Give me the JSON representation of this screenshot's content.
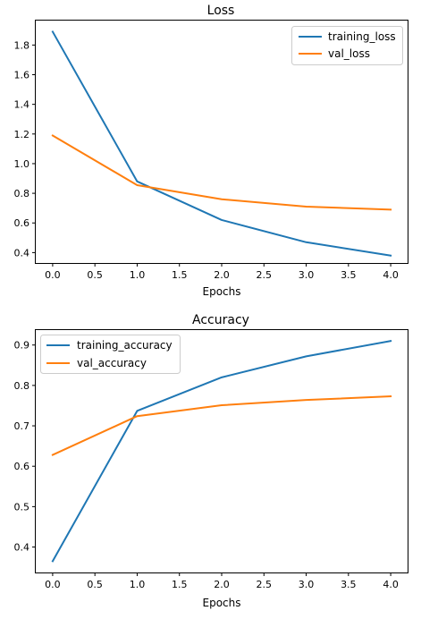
{
  "chart_data": [
    {
      "type": "line",
      "title": "Loss",
      "xlabel": "Epochs",
      "ylabel": "",
      "x": [
        0,
        1,
        2,
        3,
        4
      ],
      "xlim": [
        -0.2,
        4.2
      ],
      "ylim": [
        0.33,
        1.965
      ],
      "xticks": [
        0.0,
        0.5,
        1.0,
        1.5,
        2.0,
        2.5,
        3.0,
        3.5,
        4.0
      ],
      "xtick_labels": [
        "0.0",
        "0.5",
        "1.0",
        "1.5",
        "2.0",
        "2.5",
        "3.0",
        "3.5",
        "4.0"
      ],
      "yticks": [
        0.4,
        0.6,
        0.8,
        1.0,
        1.2,
        1.4,
        1.6,
        1.8
      ],
      "ytick_labels": [
        "0.4",
        "0.6",
        "0.8",
        "1.0",
        "1.2",
        "1.4",
        "1.6",
        "1.8"
      ],
      "grid": false,
      "legend_position": "top-right",
      "series": [
        {
          "name": "training_loss",
          "color": "#1f77b4",
          "values": [
            1.89,
            0.88,
            0.62,
            0.47,
            0.38
          ]
        },
        {
          "name": "val_loss",
          "color": "#ff7f0e",
          "values": [
            1.19,
            0.855,
            0.76,
            0.71,
            0.69
          ]
        }
      ]
    },
    {
      "type": "line",
      "title": "Accuracy",
      "xlabel": "Epochs",
      "ylabel": "",
      "x": [
        0,
        1,
        2,
        3,
        4
      ],
      "xlim": [
        -0.2,
        4.2
      ],
      "ylim": [
        0.337,
        0.937
      ],
      "xticks": [
        0.0,
        0.5,
        1.0,
        1.5,
        2.0,
        2.5,
        3.0,
        3.5,
        4.0
      ],
      "xtick_labels": [
        "0.0",
        "0.5",
        "1.0",
        "1.5",
        "2.0",
        "2.5",
        "3.0",
        "3.5",
        "4.0"
      ],
      "yticks": [
        0.4,
        0.5,
        0.6,
        0.7,
        0.8,
        0.9
      ],
      "ytick_labels": [
        "0.4",
        "0.5",
        "0.6",
        "0.7",
        "0.8",
        "0.9"
      ],
      "grid": false,
      "legend_position": "top-left",
      "series": [
        {
          "name": "training_accuracy",
          "color": "#1f77b4",
          "values": [
            0.365,
            0.737,
            0.82,
            0.872,
            0.91
          ]
        },
        {
          "name": "val_accuracy",
          "color": "#ff7f0e",
          "values": [
            0.628,
            0.724,
            0.751,
            0.764,
            0.773
          ]
        }
      ]
    }
  ]
}
